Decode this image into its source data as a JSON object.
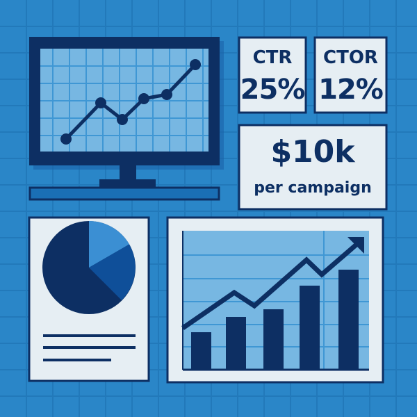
{
  "colors": {
    "background": "#2a86c8",
    "navy": "#0d2f63",
    "screen": "#77b7e2",
    "card": "#e6eef3",
    "pie_light": "#3b8fd3",
    "pie_mid": "#0f4f99"
  },
  "metrics": {
    "ctr": {
      "label": "CTR",
      "value": "25%"
    },
    "ctor": {
      "label": "CTOR",
      "value": "12%"
    },
    "budget": {
      "value": "$10k",
      "caption": "per campaign"
    }
  },
  "icons": [
    "monitor-icon",
    "line-chart-icon",
    "pie-chart-icon",
    "bar-chart-icon",
    "trend-arrow-icon"
  ]
}
